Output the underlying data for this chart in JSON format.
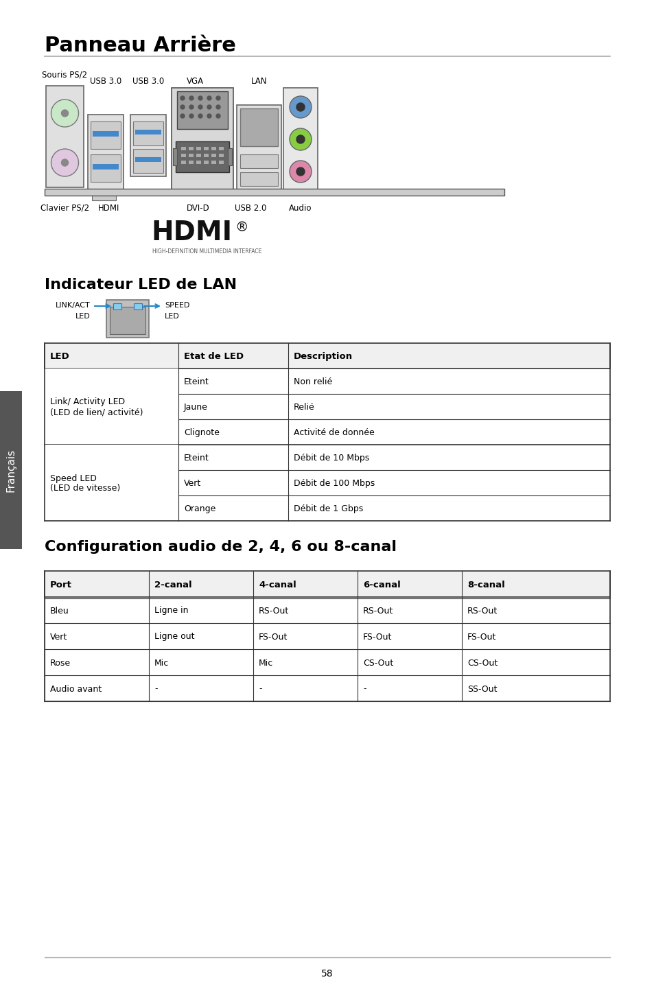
{
  "title": "Panneau Arrière",
  "section1_title": "Indicateur LED de LAN",
  "section2_title": "Configuration audio de 2, 4, 6 ou 8-canal",
  "sidebar_text": "Français",
  "page_number": "58",
  "led_table_headers": [
    "LED",
    "Etat de LED",
    "Description"
  ],
  "led_groups": [
    {
      "label": "Link/ Activity LED\n(LED de lien/ activité)",
      "rows": [
        [
          "Eteint",
          "Non relié"
        ],
        [
          "Jaune",
          "Relié"
        ],
        [
          "Clignote",
          "Activité de donnée"
        ]
      ]
    },
    {
      "label": "Speed LED\n(LED de vitesse)",
      "rows": [
        [
          "Eteint",
          "Débit de 10 Mbps"
        ],
        [
          "Vert",
          "Débit de 100 Mbps"
        ],
        [
          "Orange",
          "Débit de 1 Gbps"
        ]
      ]
    }
  ],
  "audio_table_headers": [
    "Port",
    "2-canal",
    "4-canal",
    "6-canal",
    "8-canal"
  ],
  "audio_table_rows": [
    [
      "Bleu",
      "Ligne in",
      "RS-Out",
      "RS-Out",
      "RS-Out"
    ],
    [
      "Vert",
      "Ligne out",
      "FS-Out",
      "FS-Out",
      "FS-Out"
    ],
    [
      "Rose",
      "Mic",
      "Mic",
      "CS-Out",
      "CS-Out"
    ],
    [
      "Audio avant",
      "-",
      "-",
      "-",
      "SS-Out"
    ]
  ],
  "bg_color": "#ffffff",
  "text_color": "#000000",
  "sidebar_bg": "#555555",
  "sidebar_text_color": "#ffffff",
  "usb_blue": "#4488cc",
  "ps2_mouse_color": "#c8e8c8",
  "ps2_keyboard_color": "#e0c8e0",
  "audio_blue": "#6699cc",
  "audio_green": "#88cc44",
  "audio_pink": "#dd88aa",
  "lan_connector_color": "#aaaaaa"
}
